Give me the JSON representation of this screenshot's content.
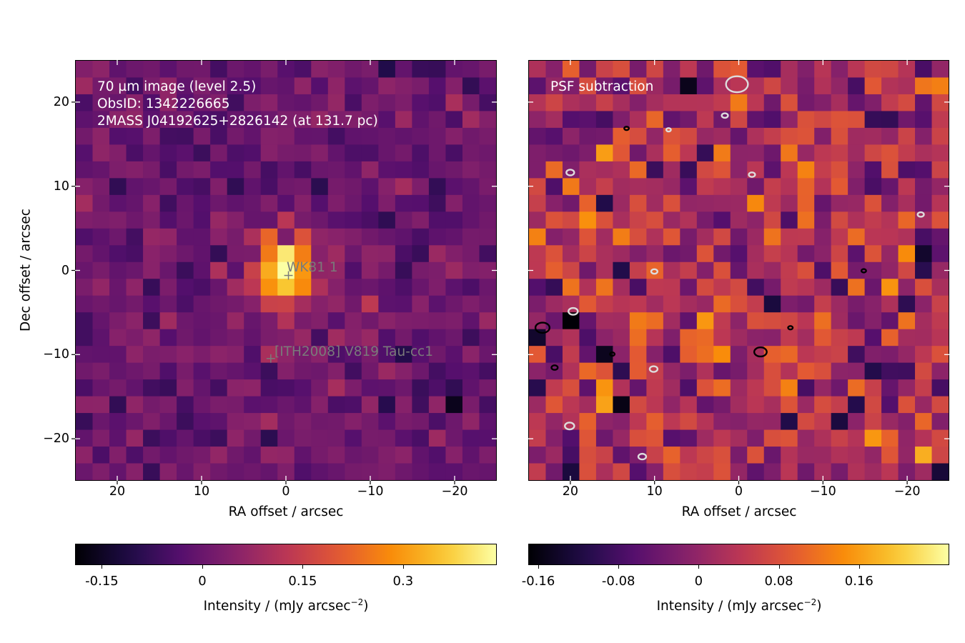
{
  "panels": [
    {
      "id": "left",
      "annotation_lines": [
        "70 µm image (level 2.5)",
        "ObsID: 1342226665",
        "2MASS J04192625+2826142 (at 131.7 pc)"
      ],
      "sources": [
        {
          "label": "WK81 1",
          "ra": -0.3,
          "dec": -0.6
        },
        {
          "label": "[ITH2008] V819 Tau-cc1",
          "ra": 1.8,
          "dec": -10.5
        }
      ],
      "xlabel": "RA offset / arcsec",
      "ylabel": "Dec offset / arcsec",
      "colorbar": {
        "label": "Intensity / (mJy arcsec",
        "label_sup": "−2",
        "label_end": ")",
        "ticks": [
          "-0.15",
          "0",
          "0.15",
          "0.3"
        ],
        "range": [
          -0.19,
          0.44
        ],
        "colormap": "inferno"
      }
    },
    {
      "id": "right",
      "annotation_lines": [
        "PSF subtraction"
      ],
      "xlabel": "RA offset / arcsec",
      "contour_colors": [
        "#000000",
        "#dddddd"
      ],
      "colorbar": {
        "label": "Intensity / (mJy arcsec",
        "label_sup": "−2",
        "label_end": ")",
        "ticks": [
          "-0.16",
          "-0.08",
          "0",
          "0.08",
          "0.16"
        ],
        "range": [
          -0.17,
          0.25
        ],
        "colormap": "inferno"
      }
    }
  ],
  "chart_data": {
    "type": "heatmap",
    "x_range": [
      25,
      -25
    ],
    "y_range": [
      -25,
      25
    ],
    "xticks": [
      "20",
      "10",
      "0",
      "−10",
      "−20"
    ],
    "yticks": [
      "20",
      "10",
      "0",
      "−10",
      "−20"
    ],
    "pixel_size_arcsec": 2,
    "source_peak": {
      "ra": 0,
      "dec": 0,
      "value": 0.4
    }
  }
}
